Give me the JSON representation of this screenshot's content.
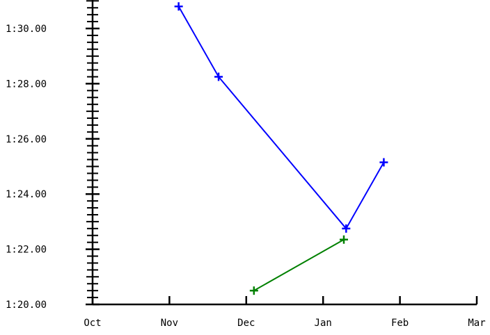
{
  "chart_data": {
    "type": "line",
    "title": "",
    "xlabel": "",
    "ylabel": "",
    "x_ticks": [
      "Oct",
      "Nov",
      "Dec",
      "Jan",
      "Feb",
      "Mar"
    ],
    "y_ticks": [
      "1:20.00",
      "1:22.00",
      "1:24.00",
      "1:26.00",
      "1:28.00",
      "1:30.00"
    ],
    "xlim": [
      0,
      5
    ],
    "ylim_seconds": [
      80,
      91
    ],
    "grid": false,
    "legend": "none",
    "series": [
      {
        "color": "#0000ff",
        "x": [
          1.12,
          1.64,
          3.3,
          3.79
        ],
        "y_seconds": [
          90.8,
          88.25,
          82.75,
          85.15
        ],
        "marker": "plus"
      },
      {
        "color": "#008000",
        "x": [
          2.1,
          3.27
        ],
        "y_seconds": [
          80.5,
          82.35
        ],
        "marker": "plus"
      }
    ]
  }
}
